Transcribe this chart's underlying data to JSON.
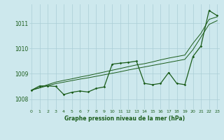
{
  "xlabel": "Graphe pression niveau de la mer (hPa)",
  "bg_color": "#cde8ed",
  "grid_color": "#aacdd5",
  "line_color": "#1a5c1a",
  "text_color": "#1a5c1a",
  "x_values": [
    0,
    1,
    2,
    3,
    4,
    5,
    6,
    7,
    8,
    9,
    10,
    11,
    12,
    13,
    14,
    15,
    16,
    17,
    18,
    19,
    20,
    21,
    22,
    23
  ],
  "y_main": [
    1008.35,
    1008.52,
    1008.52,
    1008.5,
    1008.18,
    1008.27,
    1008.32,
    1008.28,
    1008.42,
    1008.48,
    1009.38,
    1009.42,
    1009.45,
    1009.5,
    1008.62,
    1008.57,
    1008.62,
    1009.05,
    1008.62,
    1008.57,
    1009.68,
    1010.1,
    1011.5,
    1011.3
  ],
  "y_trend1": [
    1008.35,
    1008.44,
    1008.53,
    1008.61,
    1008.67,
    1008.73,
    1008.79,
    1008.84,
    1008.9,
    1008.96,
    1009.02,
    1009.08,
    1009.15,
    1009.21,
    1009.27,
    1009.33,
    1009.39,
    1009.45,
    1009.51,
    1009.57,
    1009.95,
    1010.45,
    1010.95,
    1011.1
  ],
  "y_trend2": [
    1008.35,
    1008.46,
    1008.57,
    1008.67,
    1008.74,
    1008.8,
    1008.87,
    1008.93,
    1009.0,
    1009.07,
    1009.14,
    1009.21,
    1009.28,
    1009.35,
    1009.4,
    1009.47,
    1009.55,
    1009.62,
    1009.68,
    1009.74,
    1010.2,
    1010.6,
    1011.15,
    1011.25
  ],
  "ylim": [
    1007.6,
    1011.75
  ],
  "yticks": [
    1008,
    1009,
    1010,
    1011
  ],
  "xticks": [
    0,
    1,
    2,
    3,
    4,
    5,
    6,
    7,
    8,
    9,
    10,
    11,
    12,
    13,
    14,
    15,
    16,
    17,
    18,
    19,
    20,
    21,
    22,
    23
  ],
  "xlim": [
    -0.3,
    23.3
  ]
}
